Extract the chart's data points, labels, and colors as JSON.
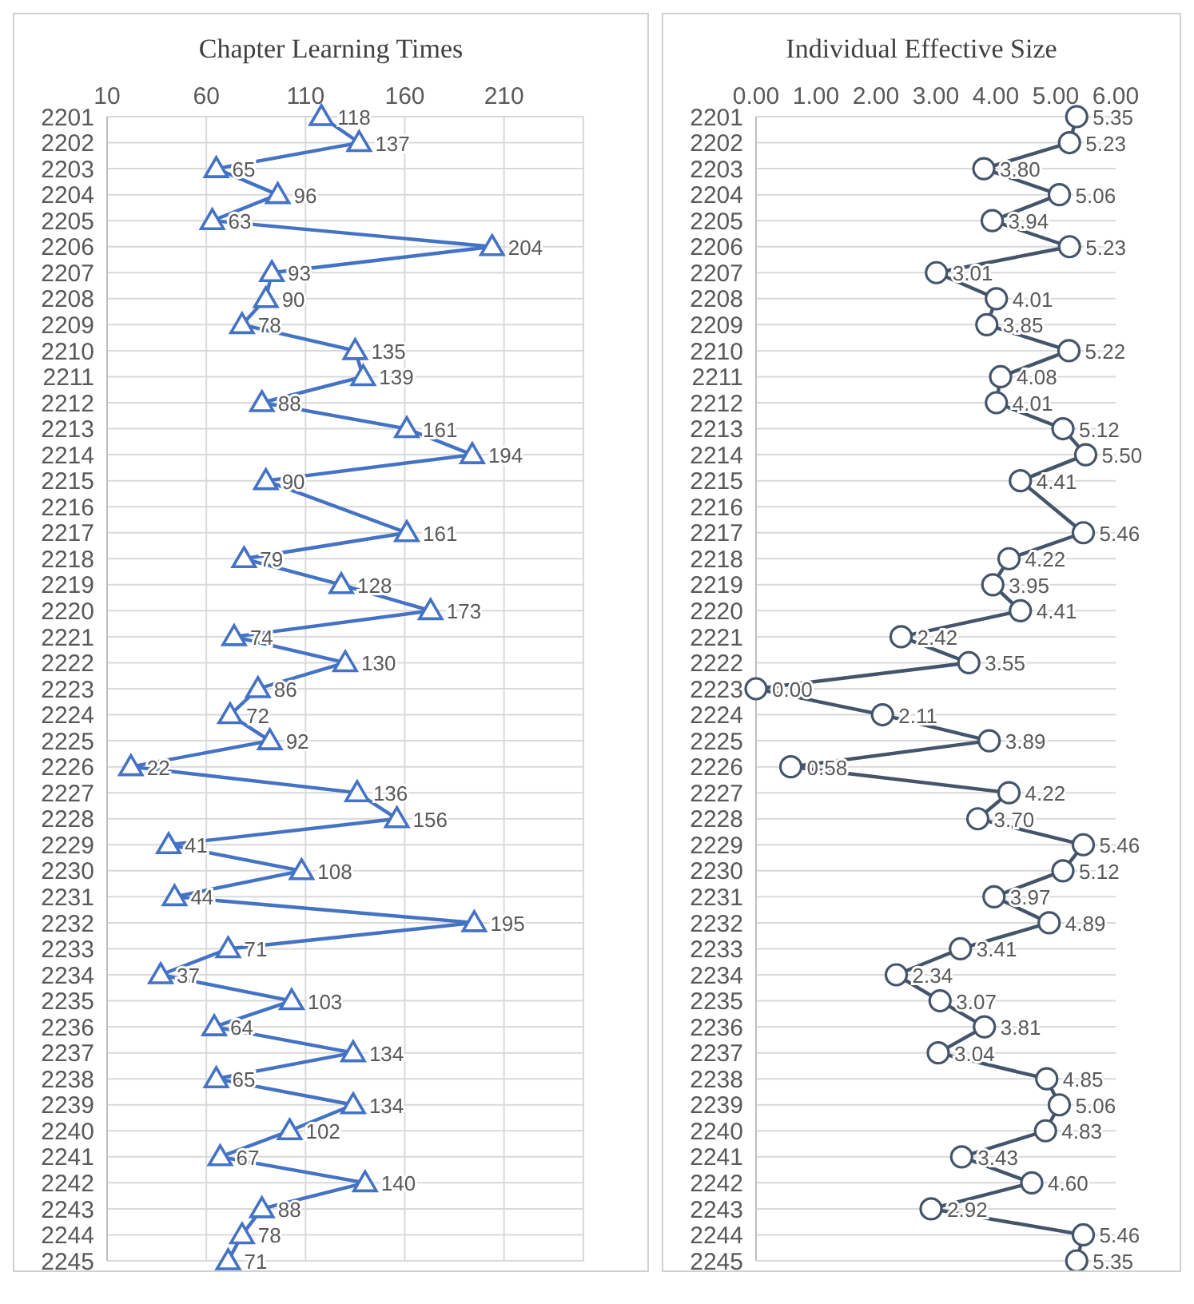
{
  "chart_data": [
    {
      "type": "line",
      "title": "Chapter Learning Times",
      "orientation": "horizontal",
      "categories": [
        "2201",
        "2202",
        "2203",
        "2204",
        "2205",
        "2206",
        "2207",
        "2208",
        "2209",
        "2210",
        "2211",
        "2212",
        "2213",
        "2214",
        "2215",
        "2216",
        "2217",
        "2218",
        "2219",
        "2220",
        "2221",
        "2222",
        "2223",
        "2224",
        "2225",
        "2226",
        "2227",
        "2228",
        "2229",
        "2230",
        "2231",
        "2232",
        "2233",
        "2234",
        "2235",
        "2236",
        "2237",
        "2238",
        "2239",
        "2240",
        "2241",
        "2242",
        "2243",
        "2244",
        "2245"
      ],
      "series": [
        {
          "color": "#4472c4",
          "values": [
            118,
            137,
            65,
            96,
            63,
            204,
            93,
            90,
            78,
            135,
            139,
            88,
            161,
            194,
            90,
            null,
            161,
            79,
            128,
            173,
            74,
            130,
            86,
            72,
            92,
            22,
            136,
            156,
            41,
            108,
            44,
            195,
            71,
            37,
            103,
            64,
            134,
            65,
            134,
            102,
            67,
            140,
            88,
            78,
            71
          ]
        }
      ],
      "xlim": [
        10,
        250
      ],
      "xticks": [
        10,
        60,
        110,
        160,
        210
      ],
      "grid": true,
      "marker": "triangle",
      "data_labels": true
    },
    {
      "type": "line",
      "title": "Individual Effective Size",
      "orientation": "horizontal",
      "categories": [
        "2201",
        "2202",
        "2203",
        "2204",
        "2205",
        "2206",
        "2207",
        "2208",
        "2209",
        "2210",
        "2211",
        "2212",
        "2213",
        "2214",
        "2215",
        "2216",
        "2217",
        "2218",
        "2219",
        "2220",
        "2221",
        "2222",
        "2223",
        "2224",
        "2225",
        "2226",
        "2227",
        "2228",
        "2229",
        "2230",
        "2231",
        "2232",
        "2233",
        "2234",
        "2235",
        "2236",
        "2237",
        "2238",
        "2239",
        "2240",
        "2241",
        "2242",
        "2243",
        "2244",
        "2245"
      ],
      "series": [
        {
          "color": "#44546a",
          "values": [
            5.35,
            5.23,
            3.8,
            5.06,
            3.94,
            5.23,
            3.01,
            4.01,
            3.85,
            5.22,
            4.08,
            4.01,
            5.12,
            5.5,
            4.41,
            null,
            5.46,
            4.22,
            3.95,
            4.41,
            2.42,
            3.55,
            0,
            2.11,
            3.89,
            0.58,
            4.22,
            3.7,
            5.46,
            5.12,
            3.97,
            4.89,
            3.41,
            2.34,
            3.07,
            3.81,
            3.04,
            4.85,
            5.06,
            4.83,
            3.43,
            4.6,
            2.92,
            5.46,
            5.35
          ],
          "value_labels": [
            "5.35",
            "5.23",
            "3.80",
            "5.06",
            "3.94",
            "5.23",
            "3.01",
            "4.01",
            "3.85",
            "5.22",
            "4.08",
            "4.01",
            "5.12",
            "5.50",
            "4.41",
            null,
            "5.46",
            "4.22",
            "3.95",
            "4.41",
            "2.42",
            "3.55",
            "0.00",
            "2.11",
            "3.89",
            "0.58",
            "4.22",
            "3.70",
            "5.46",
            "5.12",
            "3.97",
            "4.89",
            "3.41",
            "2.34",
            "3.07",
            "3.81",
            "3.04",
            "4.85",
            "5.06",
            "4.83",
            "3.43",
            "4.60",
            "2.92",
            "5.46",
            "5.35"
          ]
        }
      ],
      "xlim": [
        0,
        6
      ],
      "xticks": [
        {
          "value": 0,
          "label": "0.00"
        },
        {
          "value": 1,
          "label": "1.00"
        },
        {
          "value": 2,
          "label": "2.00"
        },
        {
          "value": 3,
          "label": "3.00"
        },
        {
          "value": 4,
          "label": "4.00"
        },
        {
          "value": 5,
          "label": "5.00"
        },
        {
          "value": 6,
          "label": "6.00"
        }
      ],
      "grid": "y",
      "marker": "circle"
    }
  ]
}
